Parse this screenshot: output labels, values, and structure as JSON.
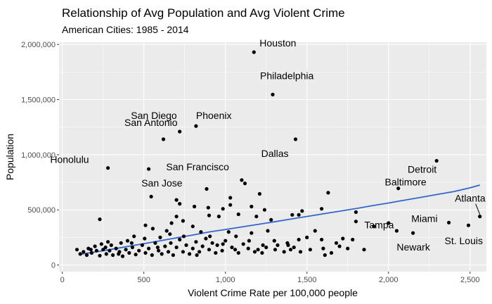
{
  "chart_data": {
    "type": "scatter",
    "title": "Relationship of Avg Population and Avg Violent Crime",
    "subtitle": "American Cities: 1985 - 2014",
    "xlabel": "Violent Crime Rate per 100,000 people",
    "ylabel": "Population",
    "xlim": [
      -20,
      2600
    ],
    "ylim": [
      -60000,
      2020000
    ],
    "x_ticks": [
      0,
      500,
      1000,
      1500,
      2000,
      2500
    ],
    "x_tick_labels": [
      "0",
      "500",
      "1,000",
      "1,500",
      "2,000",
      "2,500"
    ],
    "y_ticks": [
      0,
      500000,
      1000000,
      1500000,
      2000000
    ],
    "y_tick_labels": [
      "0",
      "500,000",
      "1,000,000",
      "1,500,000",
      "2,000,000"
    ],
    "grid": true,
    "colors": {
      "panel": "#ebebeb",
      "grid": "#ffffff",
      "points": "#000000",
      "trend": "#3366cc"
    },
    "trend_line": {
      "x": [
        100,
        200,
        300,
        400,
        500,
        600,
        700,
        800,
        900,
        1000,
        1100,
        1200,
        1300,
        1400,
        1500,
        1600,
        1700,
        1800,
        1900,
        2000,
        2100,
        2200,
        2300,
        2400,
        2500,
        2560
      ],
      "y": [
        95000,
        118000,
        142000,
        168000,
        194000,
        220000,
        246000,
        272000,
        300000,
        322000,
        345000,
        368000,
        392000,
        416000,
        440000,
        464000,
        488000,
        512000,
        538000,
        562000,
        588000,
        614000,
        640000,
        666000,
        700000,
        725000
      ]
    },
    "labeled_cities": [
      {
        "name": "Houston",
        "x": 1175,
        "y": 1930000
      },
      {
        "name": "Philadelphia",
        "x": 1290,
        "y": 1545000
      },
      {
        "name": "Phoenix",
        "x": 820,
        "y": 1260000
      },
      {
        "name": "San Diego",
        "x": 720,
        "y": 1210000
      },
      {
        "name": "Dallas",
        "x": 1430,
        "y": 1140000
      },
      {
        "name": "San Antonio",
        "x": 620,
        "y": 1140000
      },
      {
        "name": "Honolulu",
        "x": 280,
        "y": 880000
      },
      {
        "name": "San Jose",
        "x": 530,
        "y": 870000
      },
      {
        "name": "San Francisco",
        "x": 1100,
        "y": 770000
      },
      {
        "name": "Detroit",
        "x": 2295,
        "y": 945000
      },
      {
        "name": "Baltimore",
        "x": 2060,
        "y": 695000
      },
      {
        "name": "Atlanta",
        "x": 2560,
        "y": 440000
      },
      {
        "name": "Miami",
        "x": 2370,
        "y": 385000
      },
      {
        "name": "Tampa",
        "x": 1800,
        "y": 395000
      },
      {
        "name": "St. Louis",
        "x": 2490,
        "y": 360000
      },
      {
        "name": "Newark",
        "x": 2050,
        "y": 310000
      }
    ],
    "points": [
      {
        "x": 1175,
        "y": 1930000
      },
      {
        "x": 1290,
        "y": 1545000
      },
      {
        "x": 820,
        "y": 1260000
      },
      {
        "x": 720,
        "y": 1210000
      },
      {
        "x": 1430,
        "y": 1140000
      },
      {
        "x": 620,
        "y": 1140000
      },
      {
        "x": 280,
        "y": 880000
      },
      {
        "x": 530,
        "y": 870000
      },
      {
        "x": 1100,
        "y": 770000
      },
      {
        "x": 2295,
        "y": 945000
      },
      {
        "x": 2060,
        "y": 695000
      },
      {
        "x": 2560,
        "y": 440000
      },
      {
        "x": 2370,
        "y": 385000
      },
      {
        "x": 1800,
        "y": 395000
      },
      {
        "x": 2490,
        "y": 360000
      },
      {
        "x": 2050,
        "y": 310000
      },
      {
        "x": 2150,
        "y": 290000
      },
      {
        "x": 545,
        "y": 620000
      },
      {
        "x": 700,
        "y": 590000
      },
      {
        "x": 720,
        "y": 555000
      },
      {
        "x": 885,
        "y": 690000
      },
      {
        "x": 1030,
        "y": 610000
      },
      {
        "x": 1210,
        "y": 645000
      },
      {
        "x": 1120,
        "y": 740000
      },
      {
        "x": 1630,
        "y": 655000
      },
      {
        "x": 1470,
        "y": 490000
      },
      {
        "x": 1590,
        "y": 510000
      },
      {
        "x": 1800,
        "y": 480000
      },
      {
        "x": 1410,
        "y": 455000
      },
      {
        "x": 1450,
        "y": 455000
      },
      {
        "x": 985,
        "y": 510000
      },
      {
        "x": 1030,
        "y": 545000
      },
      {
        "x": 895,
        "y": 520000
      },
      {
        "x": 810,
        "y": 530000
      },
      {
        "x": 1160,
        "y": 530000
      },
      {
        "x": 1240,
        "y": 500000
      },
      {
        "x": 1190,
        "y": 440000
      },
      {
        "x": 1280,
        "y": 410000
      },
      {
        "x": 1080,
        "y": 460000
      },
      {
        "x": 900,
        "y": 450000
      },
      {
        "x": 960,
        "y": 440000
      },
      {
        "x": 740,
        "y": 400000
      },
      {
        "x": 700,
        "y": 440000
      },
      {
        "x": 555,
        "y": 330000
      },
      {
        "x": 510,
        "y": 360000
      },
      {
        "x": 230,
        "y": 415000
      },
      {
        "x": 670,
        "y": 380000
      },
      {
        "x": 800,
        "y": 350000
      },
      {
        "x": 850,
        "y": 300000
      },
      {
        "x": 1020,
        "y": 300000
      },
      {
        "x": 1260,
        "y": 310000
      },
      {
        "x": 1160,
        "y": 290000
      },
      {
        "x": 1550,
        "y": 310000
      },
      {
        "x": 1590,
        "y": 230000
      },
      {
        "x": 1720,
        "y": 240000
      },
      {
        "x": 1680,
        "y": 200000
      },
      {
        "x": 1780,
        "y": 230000
      },
      {
        "x": 1300,
        "y": 220000
      },
      {
        "x": 1380,
        "y": 200000
      },
      {
        "x": 1450,
        "y": 230000
      },
      {
        "x": 1500,
        "y": 250000
      },
      {
        "x": 1600,
        "y": 150000
      },
      {
        "x": 1750,
        "y": 150000
      },
      {
        "x": 1850,
        "y": 140000
      },
      {
        "x": 1910,
        "y": 350000
      },
      {
        "x": 2000,
        "y": 380000
      },
      {
        "x": 1400,
        "y": 140000
      },
      {
        "x": 1650,
        "y": 110000
      },
      {
        "x": 1610,
        "y": 90000
      },
      {
        "x": 1460,
        "y": 120000
      },
      {
        "x": 1360,
        "y": 120000
      },
      {
        "x": 1180,
        "y": 120000
      },
      {
        "x": 1060,
        "y": 140000
      },
      {
        "x": 940,
        "y": 110000
      },
      {
        "x": 1110,
        "y": 190000
      },
      {
        "x": 1230,
        "y": 180000
      },
      {
        "x": 600,
        "y": 250000
      },
      {
        "x": 640,
        "y": 310000
      },
      {
        "x": 660,
        "y": 280000
      },
      {
        "x": 440,
        "y": 260000
      },
      {
        "x": 400,
        "y": 220000
      },
      {
        "x": 360,
        "y": 200000
      },
      {
        "x": 300,
        "y": 180000
      },
      {
        "x": 280,
        "y": 210000
      },
      {
        "x": 240,
        "y": 190000
      },
      {
        "x": 200,
        "y": 170000
      },
      {
        "x": 160,
        "y": 150000
      },
      {
        "x": 130,
        "y": 120000
      },
      {
        "x": 90,
        "y": 140000
      },
      {
        "x": 110,
        "y": 100000
      },
      {
        "x": 150,
        "y": 90000
      },
      {
        "x": 180,
        "y": 110000
      },
      {
        "x": 210,
        "y": 130000
      },
      {
        "x": 230,
        "y": 85000
      },
      {
        "x": 250,
        "y": 140000
      },
      {
        "x": 270,
        "y": 100000
      },
      {
        "x": 290,
        "y": 130000
      },
      {
        "x": 310,
        "y": 90000
      },
      {
        "x": 330,
        "y": 150000
      },
      {
        "x": 350,
        "y": 120000
      },
      {
        "x": 370,
        "y": 80000
      },
      {
        "x": 390,
        "y": 140000
      },
      {
        "x": 410,
        "y": 110000
      },
      {
        "x": 430,
        "y": 160000
      },
      {
        "x": 450,
        "y": 95000
      },
      {
        "x": 470,
        "y": 130000
      },
      {
        "x": 490,
        "y": 180000
      },
      {
        "x": 510,
        "y": 110000
      },
      {
        "x": 530,
        "y": 150000
      },
      {
        "x": 550,
        "y": 90000
      },
      {
        "x": 570,
        "y": 200000
      },
      {
        "x": 590,
        "y": 130000
      },
      {
        "x": 610,
        "y": 100000
      },
      {
        "x": 630,
        "y": 170000
      },
      {
        "x": 650,
        "y": 120000
      },
      {
        "x": 680,
        "y": 90000
      },
      {
        "x": 700,
        "y": 160000
      },
      {
        "x": 720,
        "y": 230000
      },
      {
        "x": 740,
        "y": 120000
      },
      {
        "x": 760,
        "y": 180000
      },
      {
        "x": 780,
        "y": 100000
      },
      {
        "x": 800,
        "y": 150000
      },
      {
        "x": 820,
        "y": 210000
      },
      {
        "x": 840,
        "y": 120000
      },
      {
        "x": 860,
        "y": 170000
      },
      {
        "x": 880,
        "y": 240000
      },
      {
        "x": 900,
        "y": 140000
      },
      {
        "x": 920,
        "y": 200000
      },
      {
        "x": 950,
        "y": 180000
      },
      {
        "x": 980,
        "y": 130000
      },
      {
        "x": 1000,
        "y": 220000
      },
      {
        "x": 1040,
        "y": 160000
      },
      {
        "x": 1080,
        "y": 110000
      },
      {
        "x": 1140,
        "y": 150000
      },
      {
        "x": 1200,
        "y": 140000
      },
      {
        "x": 1250,
        "y": 160000
      },
      {
        "x": 1320,
        "y": 180000
      },
      {
        "x": 1420,
        "y": 160000
      },
      {
        "x": 1520,
        "y": 140000
      },
      {
        "x": 1700,
        "y": 170000
      },
      {
        "x": 175,
        "y": 140000
      },
      {
        "x": 265,
        "y": 160000
      },
      {
        "x": 345,
        "y": 100000
      },
      {
        "x": 425,
        "y": 200000
      },
      {
        "x": 505,
        "y": 240000
      },
      {
        "x": 585,
        "y": 160000
      },
      {
        "x": 665,
        "y": 200000
      },
      {
        "x": 745,
        "y": 260000
      },
      {
        "x": 825,
        "y": 90000
      },
      {
        "x": 905,
        "y": 260000
      },
      {
        "x": 985,
        "y": 190000
      },
      {
        "x": 1065,
        "y": 260000
      },
      {
        "x": 1145,
        "y": 220000
      },
      {
        "x": 1225,
        "y": 110000
      },
      {
        "x": 1305,
        "y": 140000
      },
      {
        "x": 1385,
        "y": 180000
      }
    ]
  }
}
